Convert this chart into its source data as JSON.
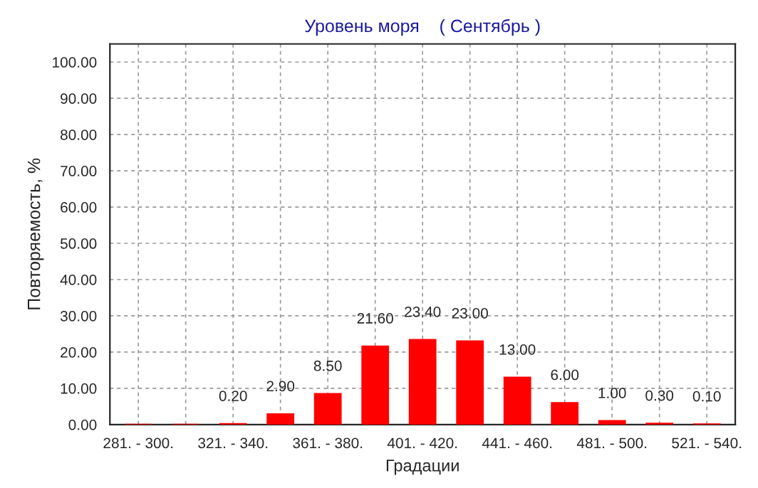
{
  "chart_data": {
    "type": "bar",
    "title": "Уровень моря    ( Сентябрь )",
    "xlabel": "Градации",
    "ylabel": "Повторяемость, %",
    "categories": [
      "281. - 300.",
      null,
      "321. - 340.",
      null,
      "361. - 380.",
      null,
      "401. - 420.",
      null,
      "441. - 460.",
      null,
      "481. - 500.",
      null,
      "521. - 540."
    ],
    "values": [
      0,
      0,
      0.2,
      2.9,
      8.5,
      21.6,
      23.4,
      23.0,
      13.0,
      6.0,
      1.0,
      0.3,
      0.1
    ],
    "value_labels": [
      null,
      null,
      "0.20",
      "2.90",
      "8.50",
      "21.60",
      "23.40",
      "23.00",
      "13.00",
      "6.00",
      "1.00",
      "0.30",
      "0.10"
    ],
    "color": "#ff0000",
    "ylim": [
      0,
      105
    ],
    "yticks": [
      {
        "value": 0,
        "label": "0.00"
      },
      {
        "value": 10,
        "label": "10.00"
      },
      {
        "value": 20,
        "label": "20.00"
      },
      {
        "value": 30,
        "label": "30.00"
      },
      {
        "value": 40,
        "label": "40.00"
      },
      {
        "value": 50,
        "label": "50.00"
      },
      {
        "value": 60,
        "label": "60.00"
      },
      {
        "value": 70,
        "label": "70.00"
      },
      {
        "value": 80,
        "label": "80.00"
      },
      {
        "value": 90,
        "label": "90.00"
      },
      {
        "value": 100,
        "label": "100.00"
      }
    ],
    "grid": true,
    "legend": false
  }
}
